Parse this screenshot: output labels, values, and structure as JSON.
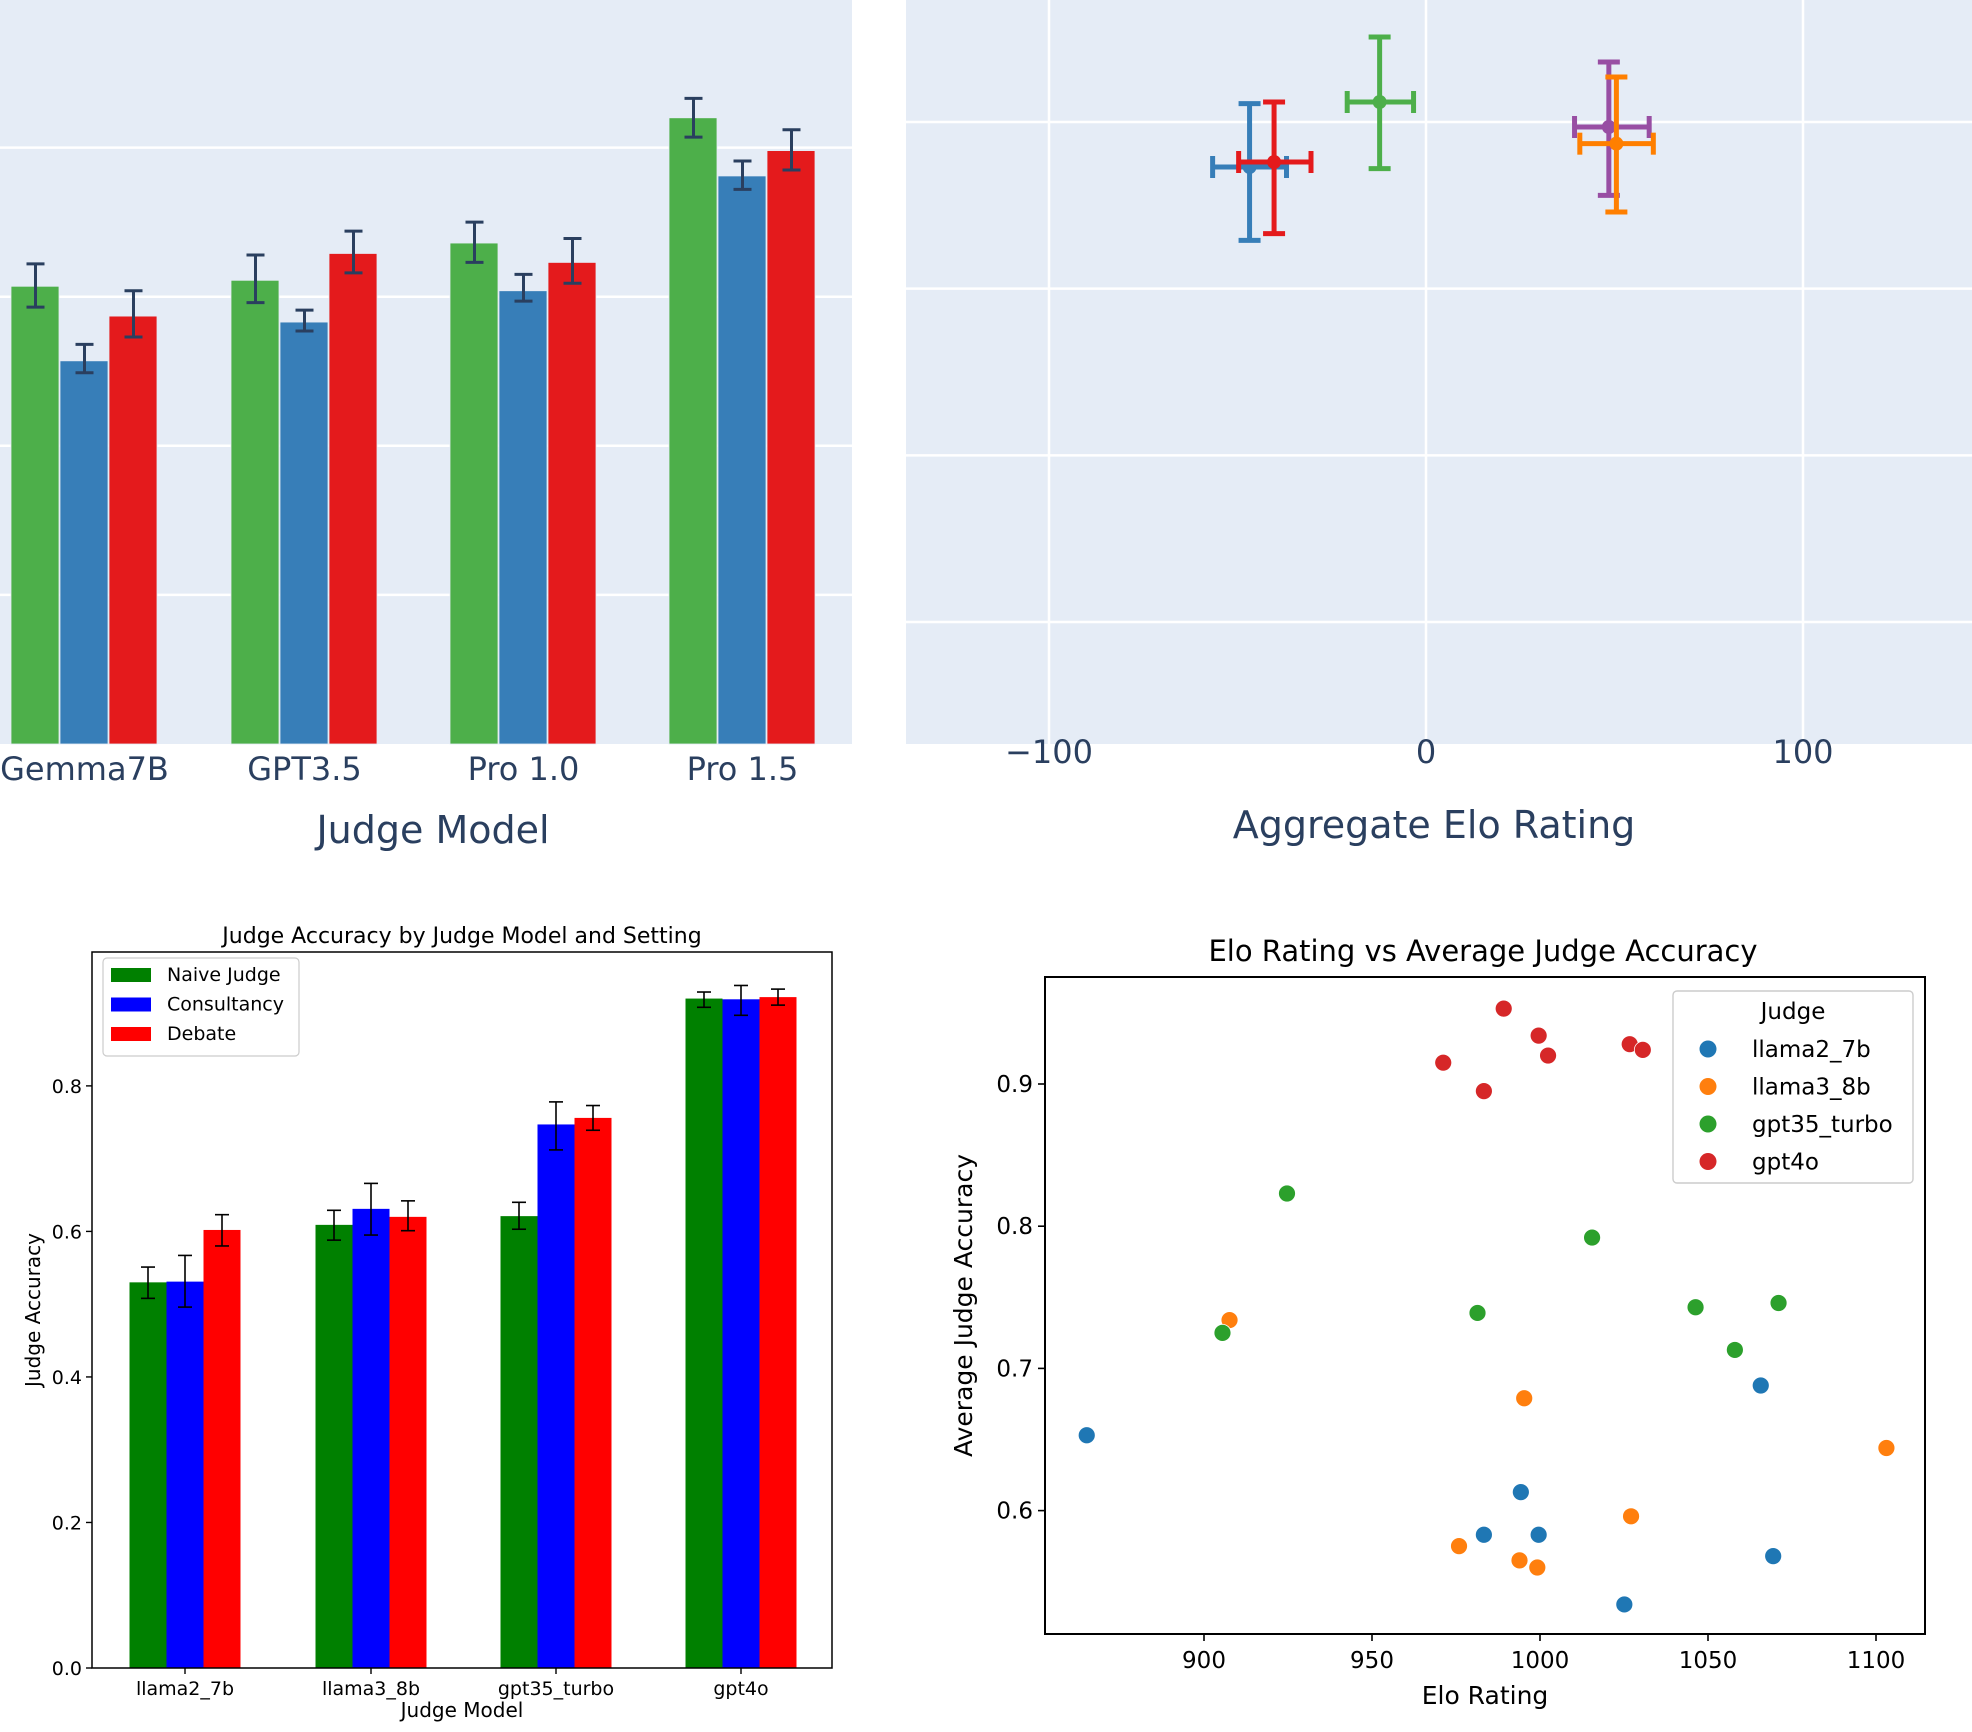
{
  "panels": {
    "top_left": {
      "panel_label": "Judge accuracy by judge model (plotly style, cropped)"
    },
    "top_right": {
      "panel_label": "Aggregate Elo rating (plotly style, cropped)"
    },
    "bottom_left": {
      "panel_label": "Judge Accuracy by Judge Model and Setting"
    },
    "bottom_right": {
      "panel_label": "Elo Rating vs Average Judge Accuracy"
    }
  },
  "chart_data": [
    {
      "type": "bar",
      "title": "",
      "xlabel": "Judge Model",
      "ylabel": "",
      "y_tick_labels_visible": false,
      "y_units": "gridline steps (tick labels cropped; baseline = 0, one unit per gridline)",
      "ylim": [
        0,
        4.99
      ],
      "grid": true,
      "background": "#e5ecf6",
      "categories": [
        "Gemma7B",
        "GPT3.5",
        "Pro 1.0",
        "Pro 1.5"
      ],
      "series": [
        {
          "name": "green",
          "color": "#4daf4a",
          "values": [
            3.07,
            3.11,
            3.36,
            4.2
          ],
          "err_low": [
            2.93,
            2.96,
            3.23,
            4.07
          ],
          "err_high": [
            3.22,
            3.28,
            3.5,
            4.33
          ]
        },
        {
          "name": "blue",
          "color": "#377eb8",
          "values": [
            2.57,
            2.83,
            3.04,
            3.81
          ],
          "err_low": [
            2.49,
            2.77,
            2.97,
            3.72
          ],
          "err_high": [
            2.68,
            2.91,
            3.15,
            3.91
          ]
        },
        {
          "name": "red",
          "color": "#e41a1c",
          "values": [
            2.87,
            3.29,
            3.23,
            3.98
          ],
          "err_low": [
            2.73,
            3.16,
            3.09,
            3.85
          ],
          "err_high": [
            3.04,
            3.44,
            3.39,
            4.12
          ]
        }
      ],
      "error_bar_color": "#2a3f5f"
    },
    {
      "type": "scatter",
      "title": "",
      "xlabel": "Aggregate Elo Rating",
      "ylabel": "",
      "xlim": [
        -138,
        145
      ],
      "x_ticks": [
        -100,
        0,
        100
      ],
      "x_tick_labels": [
        "−100",
        "0",
        "100"
      ],
      "y_tick_labels_visible": false,
      "y_units": "gridline steps (tick labels cropped; lowest visible gridline = 1)",
      "ylim": [
        0.4,
        4.75
      ],
      "grid": true,
      "background": "#e5ecf6",
      "series": [
        {
          "name": "blue",
          "color": "#377eb8",
          "x": -46.8,
          "y": 3.73,
          "x_err": [
            -56.6,
            -37.0
          ],
          "y_err": [
            3.29,
            4.11
          ]
        },
        {
          "name": "red",
          "color": "#e41a1c",
          "x": -40.3,
          "y": 3.76,
          "x_err": [
            -49.7,
            -30.5
          ],
          "y_err": [
            3.33,
            4.12
          ]
        },
        {
          "name": "green",
          "color": "#4daf4a",
          "x": -12.3,
          "y": 4.12,
          "x_err": [
            -20.9,
            -3.3
          ],
          "y_err": [
            3.72,
            4.51
          ]
        },
        {
          "name": "purple",
          "color": "#984ea3",
          "x": 48.5,
          "y": 3.97,
          "x_err": [
            39.4,
            59.2
          ],
          "y_err": [
            3.56,
            4.36
          ]
        },
        {
          "name": "orange",
          "color": "#ff7f00",
          "x": 50.5,
          "y": 3.87,
          "x_err": [
            40.8,
            60.3
          ],
          "y_err": [
            3.46,
            4.27
          ]
        }
      ]
    },
    {
      "type": "bar",
      "title": "Judge Accuracy by Judge Model and Setting",
      "xlabel": "Judge Model",
      "ylabel": "Judge Accuracy",
      "ylim": [
        0.0,
        0.984
      ],
      "y_ticks": [
        0.0,
        0.2,
        0.4,
        0.6,
        0.8
      ],
      "y_tick_labels": [
        "0.0",
        "0.2",
        "0.4",
        "0.6",
        "0.8"
      ],
      "grid": false,
      "legend_position": "top-left",
      "categories": [
        "llama2_7b",
        "llama3_8b",
        "gpt35_turbo",
        "gpt4o"
      ],
      "series": [
        {
          "name": "Naive Judge",
          "color": "#008000",
          "values": [
            0.53,
            0.609,
            0.621,
            0.92
          ],
          "err_low": [
            0.508,
            0.588,
            0.603,
            0.908
          ],
          "err_high": [
            0.551,
            0.629,
            0.64,
            0.929
          ]
        },
        {
          "name": "Consultancy",
          "color": "#0000ff",
          "values": [
            0.531,
            0.631,
            0.747,
            0.919
          ],
          "err_low": [
            0.496,
            0.595,
            0.712,
            0.897
          ],
          "err_high": [
            0.567,
            0.666,
            0.778,
            0.938
          ]
        },
        {
          "name": "Debate",
          "color": "#ff0000",
          "values": [
            0.602,
            0.62,
            0.756,
            0.922
          ],
          "err_low": [
            0.58,
            0.601,
            0.739,
            0.911
          ],
          "err_high": [
            0.623,
            0.642,
            0.773,
            0.933
          ]
        }
      ],
      "error_bar_color": "#000000"
    },
    {
      "type": "scatter",
      "title": "Elo Rating vs Average Judge Accuracy",
      "xlabel": "Elo Rating",
      "ylabel": "Average Judge Accuracy",
      "xlim": [
        854,
        1118
      ],
      "ylim": [
        0.514,
        0.971
      ],
      "x_ticks": [
        900,
        950,
        1000,
        1050,
        1100
      ],
      "x_tick_labels": [
        "900",
        "950",
        "1000",
        "1050",
        "1100"
      ],
      "y_ticks": [
        0.6,
        0.7,
        0.8,
        0.9
      ],
      "y_tick_labels": [
        "0.6",
        "0.7",
        "0.8",
        "0.9"
      ],
      "grid": false,
      "legend_title": "Judge",
      "legend_position": "top-right",
      "series": [
        {
          "name": "llama2_7b",
          "color": "#1f77b4",
          "x": [
            865.1,
            1065.7,
            994.3,
            983.3,
            999.6,
            1069.4,
            1025.1
          ],
          "y": [
            0.653,
            0.688,
            0.613,
            0.583,
            0.583,
            0.568,
            0.534
          ]
        },
        {
          "name": "llama3_8b",
          "color": "#ff7f0e",
          "x": [
            907.6,
            995.3,
            1103.1,
            1027.1,
            975.9,
            993.9,
            999.2
          ],
          "y": [
            0.734,
            0.679,
            0.644,
            0.596,
            0.575,
            0.565,
            0.56
          ]
        },
        {
          "name": "gpt35_turbo",
          "color": "#2ca02c",
          "x": [
            924.7,
            1015.5,
            981.4,
            905.5,
            1046.3,
            1071.0,
            1058.0
          ],
          "y": [
            0.823,
            0.792,
            0.739,
            0.725,
            0.743,
            0.746,
            0.713
          ]
        },
        {
          "name": "gpt4o",
          "color": "#d62728",
          "x": [
            989.2,
            999.6,
            1002.4,
            971.2,
            983.3,
            1026.7,
            1030.6
          ],
          "y": [
            0.953,
            0.934,
            0.92,
            0.915,
            0.895,
            0.928,
            0.924
          ]
        }
      ]
    }
  ]
}
